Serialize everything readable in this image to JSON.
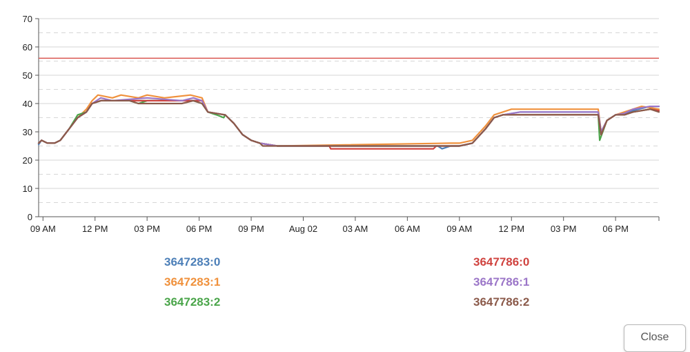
{
  "chart_data": {
    "type": "line",
    "title": "",
    "xlabel": "",
    "ylabel": "",
    "ylim": [
      0,
      70
    ],
    "y_ticks": [
      0,
      10,
      20,
      30,
      40,
      50,
      60,
      70
    ],
    "x_range": [
      "2023-08-01 08:45",
      "2023-08-02 20:30"
    ],
    "x_ticks": [
      {
        "t": "2023-08-01 09:00",
        "label": "09 AM"
      },
      {
        "t": "2023-08-01 12:00",
        "label": "12 PM"
      },
      {
        "t": "2023-08-01 15:00",
        "label": "03 PM"
      },
      {
        "t": "2023-08-01 18:00",
        "label": "06 PM"
      },
      {
        "t": "2023-08-01 21:00",
        "label": "09 PM"
      },
      {
        "t": "2023-08-02 00:00",
        "label": "Aug 02"
      },
      {
        "t": "2023-08-02 03:00",
        "label": "03 AM"
      },
      {
        "t": "2023-08-02 06:00",
        "label": "06 AM"
      },
      {
        "t": "2023-08-02 09:00",
        "label": "09 AM"
      },
      {
        "t": "2023-08-02 12:00",
        "label": "12 PM"
      },
      {
        "t": "2023-08-02 15:00",
        "label": "03 PM"
      },
      {
        "t": "2023-08-02 18:00",
        "label": "06 PM"
      }
    ],
    "grid": "horizontal, solid at labeled ticks and dashed midway",
    "threshold": {
      "value": 56,
      "color": "#d9544f"
    },
    "legend_position": "bottom",
    "series": [
      {
        "name": "3647283:0",
        "color": "#4c7fb8",
        "points": [
          [
            "2023-08-01 08:45",
            25.5
          ],
          [
            "2023-08-01 08:55",
            27
          ],
          [
            "2023-08-01 09:15",
            26
          ],
          [
            "2023-08-01 09:40",
            26
          ],
          [
            "2023-08-01 10:00",
            27
          ],
          [
            "2023-08-01 10:30",
            31
          ],
          [
            "2023-08-01 11:00",
            35
          ],
          [
            "2023-08-01 11:30",
            37
          ],
          [
            "2023-08-01 11:50",
            40
          ],
          [
            "2023-08-01 12:20",
            41
          ],
          [
            "2023-08-01 13:00",
            41
          ],
          [
            "2023-08-01 15:00",
            41
          ],
          [
            "2023-08-01 17:00",
            41
          ],
          [
            "2023-08-01 17:40",
            41
          ],
          [
            "2023-08-01 18:10",
            41
          ],
          [
            "2023-08-01 18:30",
            37
          ],
          [
            "2023-08-01 19:30",
            36
          ],
          [
            "2023-08-01 20:00",
            33
          ],
          [
            "2023-08-01 20:30",
            29
          ],
          [
            "2023-08-01 21:00",
            27
          ],
          [
            "2023-08-01 21:30",
            26
          ],
          [
            "2023-08-01 22:30",
            25
          ],
          [
            "2023-08-02 07:45",
            25
          ],
          [
            "2023-08-02 08:00",
            24
          ],
          [
            "2023-08-02 08:30",
            25
          ],
          [
            "2023-08-02 09:00",
            25
          ],
          [
            "2023-08-02 09:45",
            26
          ],
          [
            "2023-08-02 10:30",
            31
          ],
          [
            "2023-08-02 11:00",
            35
          ],
          [
            "2023-08-02 11:30",
            36
          ],
          [
            "2023-08-02 12:30",
            37
          ],
          [
            "2023-08-02 16:30",
            37
          ],
          [
            "2023-08-02 17:00",
            37
          ],
          [
            "2023-08-02 17:10",
            30
          ],
          [
            "2023-08-02 17:30",
            34
          ],
          [
            "2023-08-02 18:00",
            36
          ],
          [
            "2023-08-02 18:30",
            36.5
          ],
          [
            "2023-08-02 19:00",
            37.5
          ],
          [
            "2023-08-02 20:00",
            39
          ],
          [
            "2023-08-02 20:30",
            39
          ]
        ]
      },
      {
        "name": "3647283:1",
        "color": "#f0913c",
        "points": [
          [
            "2023-08-01 08:45",
            26
          ],
          [
            "2023-08-01 08:55",
            27
          ],
          [
            "2023-08-01 09:15",
            26
          ],
          [
            "2023-08-01 09:40",
            26
          ],
          [
            "2023-08-01 10:00",
            27
          ],
          [
            "2023-08-01 10:30",
            31
          ],
          [
            "2023-08-01 11:00",
            35
          ],
          [
            "2023-08-01 11:30",
            38
          ],
          [
            "2023-08-01 11:50",
            41
          ],
          [
            "2023-08-01 12:10",
            43
          ],
          [
            "2023-08-01 13:00",
            42
          ],
          [
            "2023-08-01 13:30",
            43
          ],
          [
            "2023-08-01 14:30",
            42
          ],
          [
            "2023-08-01 15:00",
            43
          ],
          [
            "2023-08-01 16:00",
            42
          ],
          [
            "2023-08-01 17:30",
            43
          ],
          [
            "2023-08-01 18:10",
            42
          ],
          [
            "2023-08-01 18:30",
            37
          ],
          [
            "2023-08-01 19:30",
            36
          ],
          [
            "2023-08-01 20:00",
            33
          ],
          [
            "2023-08-01 20:30",
            29
          ],
          [
            "2023-08-01 21:00",
            27
          ],
          [
            "2023-08-01 21:30",
            26
          ],
          [
            "2023-08-01 22:30",
            25
          ],
          [
            "2023-08-02 08:30",
            26
          ],
          [
            "2023-08-02 09:00",
            26
          ],
          [
            "2023-08-02 09:45",
            27
          ],
          [
            "2023-08-02 10:30",
            32
          ],
          [
            "2023-08-02 11:00",
            36
          ],
          [
            "2023-08-02 11:30",
            37
          ],
          [
            "2023-08-02 12:00",
            38
          ],
          [
            "2023-08-02 16:30",
            38
          ],
          [
            "2023-08-02 17:00",
            38
          ],
          [
            "2023-08-02 17:10",
            30
          ],
          [
            "2023-08-02 17:30",
            34
          ],
          [
            "2023-08-02 18:00",
            36
          ],
          [
            "2023-08-02 18:30",
            37
          ],
          [
            "2023-08-02 19:00",
            38
          ],
          [
            "2023-08-02 19:30",
            39
          ],
          [
            "2023-08-02 20:00",
            38.5
          ],
          [
            "2023-08-02 20:30",
            38
          ]
        ]
      },
      {
        "name": "3647283:2",
        "color": "#4aa54a",
        "points": [
          [
            "2023-08-01 08:45",
            26
          ],
          [
            "2023-08-01 08:55",
            27
          ],
          [
            "2023-08-01 09:15",
            26
          ],
          [
            "2023-08-01 09:40",
            26
          ],
          [
            "2023-08-01 10:00",
            27
          ],
          [
            "2023-08-01 10:30",
            31
          ],
          [
            "2023-08-01 11:00",
            36
          ],
          [
            "2023-08-01 11:30",
            37
          ],
          [
            "2023-08-01 11:50",
            40
          ],
          [
            "2023-08-01 12:20",
            41
          ],
          [
            "2023-08-01 14:00",
            41
          ],
          [
            "2023-08-01 14:30",
            40
          ],
          [
            "2023-08-01 15:00",
            41
          ],
          [
            "2023-08-01 17:00",
            41
          ],
          [
            "2023-08-01 17:40",
            41
          ],
          [
            "2023-08-01 18:10",
            40
          ],
          [
            "2023-08-01 18:30",
            37
          ],
          [
            "2023-08-01 19:00",
            36
          ],
          [
            "2023-08-01 19:25",
            35
          ],
          [
            "2023-08-01 19:30",
            36
          ],
          [
            "2023-08-01 20:00",
            33
          ],
          [
            "2023-08-01 20:30",
            29
          ],
          [
            "2023-08-01 21:00",
            27
          ],
          [
            "2023-08-01 21:30",
            26
          ],
          [
            "2023-08-01 22:30",
            25
          ],
          [
            "2023-08-02 08:30",
            25
          ],
          [
            "2023-08-02 09:00",
            25
          ],
          [
            "2023-08-02 09:45",
            26
          ],
          [
            "2023-08-02 10:30",
            31
          ],
          [
            "2023-08-02 11:00",
            35
          ],
          [
            "2023-08-02 11:30",
            36
          ],
          [
            "2023-08-02 12:30",
            36
          ],
          [
            "2023-08-02 16:30",
            36
          ],
          [
            "2023-08-02 17:00",
            36
          ],
          [
            "2023-08-02 17:05",
            27
          ],
          [
            "2023-08-02 17:30",
            34
          ],
          [
            "2023-08-02 18:00",
            36
          ],
          [
            "2023-08-02 18:30",
            36
          ],
          [
            "2023-08-02 19:00",
            37
          ],
          [
            "2023-08-02 20:00",
            38
          ],
          [
            "2023-08-02 20:30",
            37.5
          ]
        ]
      },
      {
        "name": "3647786:0",
        "color": "#d0433f",
        "points": [
          [
            "2023-08-01 08:45",
            26
          ],
          [
            "2023-08-01 08:55",
            27
          ],
          [
            "2023-08-01 09:15",
            26
          ],
          [
            "2023-08-01 09:40",
            26
          ],
          [
            "2023-08-01 10:00",
            27
          ],
          [
            "2023-08-01 10:30",
            31
          ],
          [
            "2023-08-01 11:00",
            35
          ],
          [
            "2023-08-01 11:30",
            37
          ],
          [
            "2023-08-01 11:50",
            40
          ],
          [
            "2023-08-01 12:20",
            41
          ],
          [
            "2023-08-01 15:00",
            41
          ],
          [
            "2023-08-01 17:00",
            41
          ],
          [
            "2023-08-01 17:40",
            41
          ],
          [
            "2023-08-01 18:10",
            41
          ],
          [
            "2023-08-01 18:30",
            37
          ],
          [
            "2023-08-01 19:30",
            36
          ],
          [
            "2023-08-01 20:00",
            33
          ],
          [
            "2023-08-01 20:30",
            29
          ],
          [
            "2023-08-01 21:00",
            27
          ],
          [
            "2023-08-01 21:30",
            26
          ],
          [
            "2023-08-01 22:30",
            25
          ],
          [
            "2023-08-02 01:30",
            25
          ],
          [
            "2023-08-02 01:35",
            24
          ],
          [
            "2023-08-02 07:30",
            24
          ],
          [
            "2023-08-02 07:40",
            25
          ],
          [
            "2023-08-02 09:00",
            25
          ],
          [
            "2023-08-02 09:45",
            26
          ],
          [
            "2023-08-02 10:30",
            31
          ],
          [
            "2023-08-02 11:00",
            35
          ],
          [
            "2023-08-02 11:30",
            36
          ],
          [
            "2023-08-02 12:30",
            36
          ],
          [
            "2023-08-02 16:30",
            36
          ],
          [
            "2023-08-02 17:00",
            36
          ],
          [
            "2023-08-02 17:10",
            29
          ],
          [
            "2023-08-02 17:30",
            34
          ],
          [
            "2023-08-02 18:00",
            36
          ],
          [
            "2023-08-02 18:30",
            36
          ],
          [
            "2023-08-02 19:00",
            37
          ],
          [
            "2023-08-02 20:00",
            38
          ],
          [
            "2023-08-02 20:30",
            37.5
          ]
        ]
      },
      {
        "name": "3647786:1",
        "color": "#9b76c8",
        "points": [
          [
            "2023-08-01 08:45",
            26
          ],
          [
            "2023-08-01 08:55",
            27
          ],
          [
            "2023-08-01 09:15",
            26
          ],
          [
            "2023-08-01 09:40",
            26
          ],
          [
            "2023-08-01 10:00",
            27
          ],
          [
            "2023-08-01 10:30",
            31
          ],
          [
            "2023-08-01 11:00",
            35
          ],
          [
            "2023-08-01 11:30",
            37
          ],
          [
            "2023-08-01 11:50",
            40
          ],
          [
            "2023-08-01 12:20",
            42
          ],
          [
            "2023-08-01 13:00",
            41
          ],
          [
            "2023-08-01 15:00",
            42
          ],
          [
            "2023-08-01 17:00",
            41
          ],
          [
            "2023-08-01 17:40",
            42
          ],
          [
            "2023-08-01 18:10",
            41
          ],
          [
            "2023-08-01 18:30",
            37
          ],
          [
            "2023-08-01 19:30",
            36
          ],
          [
            "2023-08-01 20:00",
            33
          ],
          [
            "2023-08-01 20:30",
            29
          ],
          [
            "2023-08-01 21:00",
            27
          ],
          [
            "2023-08-01 21:30",
            26
          ],
          [
            "2023-08-01 22:30",
            25
          ],
          [
            "2023-08-02 08:30",
            25
          ],
          [
            "2023-08-02 09:00",
            25
          ],
          [
            "2023-08-02 09:45",
            26
          ],
          [
            "2023-08-02 10:30",
            31
          ],
          [
            "2023-08-02 11:00",
            35
          ],
          [
            "2023-08-02 11:30",
            36
          ],
          [
            "2023-08-02 12:30",
            37
          ],
          [
            "2023-08-02 16:30",
            37
          ],
          [
            "2023-08-02 17:00",
            37
          ],
          [
            "2023-08-02 17:10",
            30
          ],
          [
            "2023-08-02 17:30",
            34
          ],
          [
            "2023-08-02 18:00",
            36
          ],
          [
            "2023-08-02 18:30",
            36.5
          ],
          [
            "2023-08-02 19:00",
            38
          ],
          [
            "2023-08-02 20:00",
            39
          ],
          [
            "2023-08-02 20:30",
            39
          ]
        ]
      },
      {
        "name": "3647786:2",
        "color": "#8b5a4a",
        "points": [
          [
            "2023-08-01 08:45",
            26
          ],
          [
            "2023-08-01 08:55",
            27
          ],
          [
            "2023-08-01 09:15",
            26
          ],
          [
            "2023-08-01 09:40",
            26
          ],
          [
            "2023-08-01 10:00",
            27
          ],
          [
            "2023-08-01 10:30",
            31
          ],
          [
            "2023-08-01 11:00",
            35
          ],
          [
            "2023-08-01 11:30",
            37
          ],
          [
            "2023-08-01 11:50",
            40
          ],
          [
            "2023-08-01 12:20",
            41
          ],
          [
            "2023-08-01 14:00",
            41
          ],
          [
            "2023-08-01 14:30",
            40
          ],
          [
            "2023-08-01 17:00",
            40
          ],
          [
            "2023-08-01 17:40",
            41
          ],
          [
            "2023-08-01 18:10",
            40
          ],
          [
            "2023-08-01 18:30",
            37
          ],
          [
            "2023-08-01 19:30",
            36
          ],
          [
            "2023-08-01 20:00",
            33
          ],
          [
            "2023-08-01 20:30",
            29
          ],
          [
            "2023-08-01 21:00",
            27
          ],
          [
            "2023-08-01 21:30",
            26
          ],
          [
            "2023-08-01 21:40",
            25
          ],
          [
            "2023-08-02 08:30",
            25
          ],
          [
            "2023-08-02 09:00",
            25
          ],
          [
            "2023-08-02 09:45",
            26
          ],
          [
            "2023-08-02 10:30",
            31
          ],
          [
            "2023-08-02 11:00",
            35
          ],
          [
            "2023-08-02 11:30",
            36
          ],
          [
            "2023-08-02 12:30",
            36
          ],
          [
            "2023-08-02 16:30",
            36
          ],
          [
            "2023-08-02 17:00",
            36
          ],
          [
            "2023-08-02 17:10",
            29
          ],
          [
            "2023-08-02 17:30",
            34
          ],
          [
            "2023-08-02 18:00",
            36
          ],
          [
            "2023-08-02 18:30",
            36
          ],
          [
            "2023-08-02 19:00",
            37
          ],
          [
            "2023-08-02 20:00",
            38
          ],
          [
            "2023-08-02 20:30",
            37
          ]
        ]
      }
    ]
  },
  "dialog": {
    "close_label": "Close"
  }
}
